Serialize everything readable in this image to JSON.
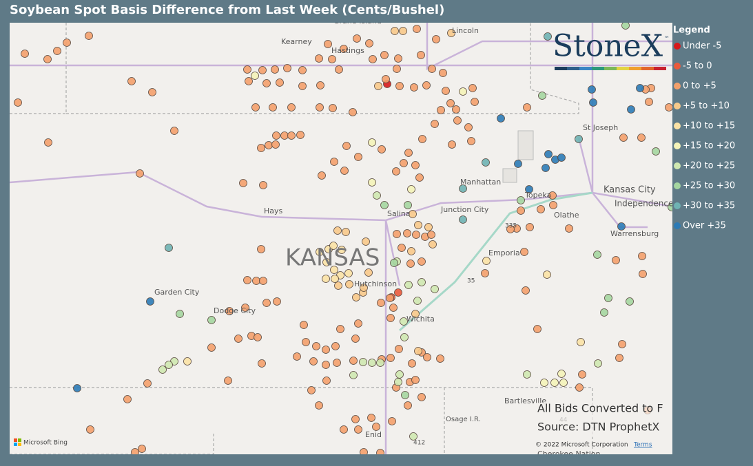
{
  "title": "Soybean Spot Basis Difference from Last Week (Cents/Bushel)",
  "legend": {
    "title": "Legend",
    "items": [
      {
        "name": "Under -5",
        "color": "#d7191c"
      },
      {
        "name": "-5 to 0",
        "color": "#ea5a3c"
      },
      {
        "name": "0 to +5",
        "color": "#f4a06b"
      },
      {
        "name": "+5 to +10",
        "color": "#f8c98a"
      },
      {
        "name": "+10 to +15",
        "color": "#fbe2a5"
      },
      {
        "name": "+15 to +20",
        "color": "#f4f3b8"
      },
      {
        "name": "+20 to +25",
        "color": "#cfe8b0"
      },
      {
        "name": "+25 to +30",
        "color": "#a5d6a0"
      },
      {
        "name": "+30 to +35",
        "color": "#6fb3b3"
      },
      {
        "name": "Over +35",
        "color": "#2c7bb6"
      }
    ]
  },
  "logo": {
    "name": "StoneX",
    "mark": "™"
  },
  "map_labels": [
    "Grand Island",
    "Kearney",
    "Hastings",
    "Lincoln",
    "St Joseph",
    "Manhattan",
    "Topeka",
    "Kansas City",
    "Independence",
    "Junction City",
    "Hays",
    "Salina",
    "Olathe",
    "Warrensburg",
    "KANSAS",
    "Emporia",
    "Hutchinson",
    "Garden City",
    "Dodge City",
    "Wichita",
    "Bartlesville",
    "Osage I.R.",
    "Enid",
    "Cherokee Nation",
    "335",
    "35",
    "44",
    "412"
  ],
  "notes": [
    "All Bids Converted to F",
    "Source: DTN ProphetX"
  ],
  "copyright": "© 2022 Microsoft Corporation",
  "terms": "Terms",
  "provider": "Microsoft Bing"
}
